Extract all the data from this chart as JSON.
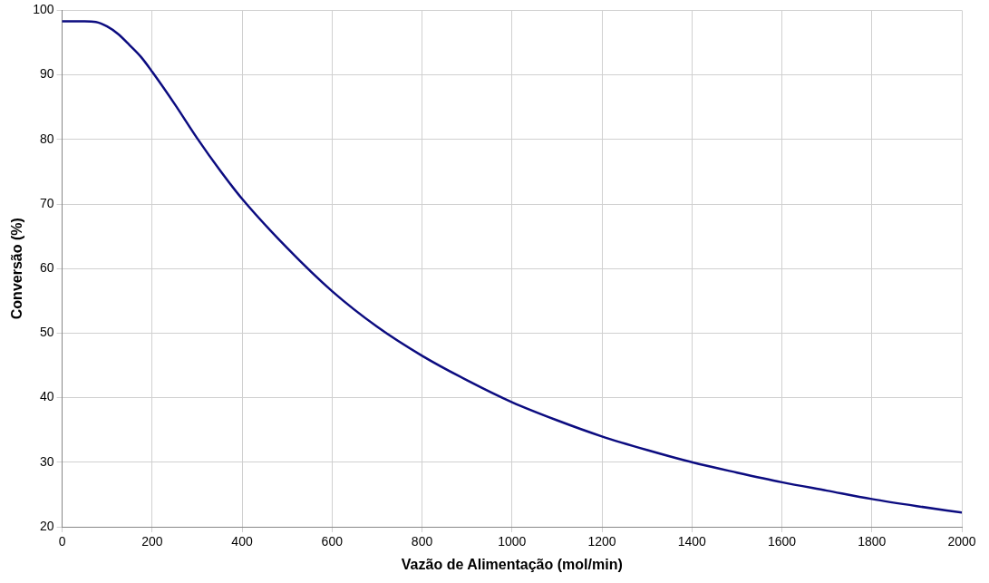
{
  "chart_data": {
    "type": "line",
    "xlabel": "Vazão de Alimentação (mol/min)",
    "ylabel": "Conversão (%)",
    "x": [
      0,
      50,
      75,
      100,
      125,
      150,
      175,
      200,
      250,
      300,
      350,
      400,
      500,
      600,
      700,
      800,
      900,
      1000,
      1100,
      1200,
      1300,
      1400,
      1500,
      1600,
      1700,
      1800,
      1900,
      2000
    ],
    "series": [
      {
        "color": "#0c0c80",
        "values": [
          98.3,
          98.3,
          98.2,
          97.5,
          96.3,
          94.6,
          92.8,
          90.5,
          85.5,
          80.2,
          75.3,
          70.8,
          63.2,
          56.5,
          51,
          46.5,
          42.7,
          39.3,
          36.5,
          34,
          31.9,
          30,
          28.4,
          26.9,
          25.6,
          24.3,
          23.2,
          22.2
        ]
      }
    ],
    "xlim": [
      0,
      2000
    ],
    "xticks": [
      0,
      200,
      400,
      600,
      800,
      1000,
      1200,
      1400,
      1600,
      1800,
      2000
    ],
    "ylim": [
      20,
      100
    ],
    "yticks": [
      20,
      30,
      40,
      50,
      60,
      70,
      80,
      90,
      100
    ],
    "grid": true,
    "legend": false,
    "marker": "none",
    "line_style": "solid"
  }
}
